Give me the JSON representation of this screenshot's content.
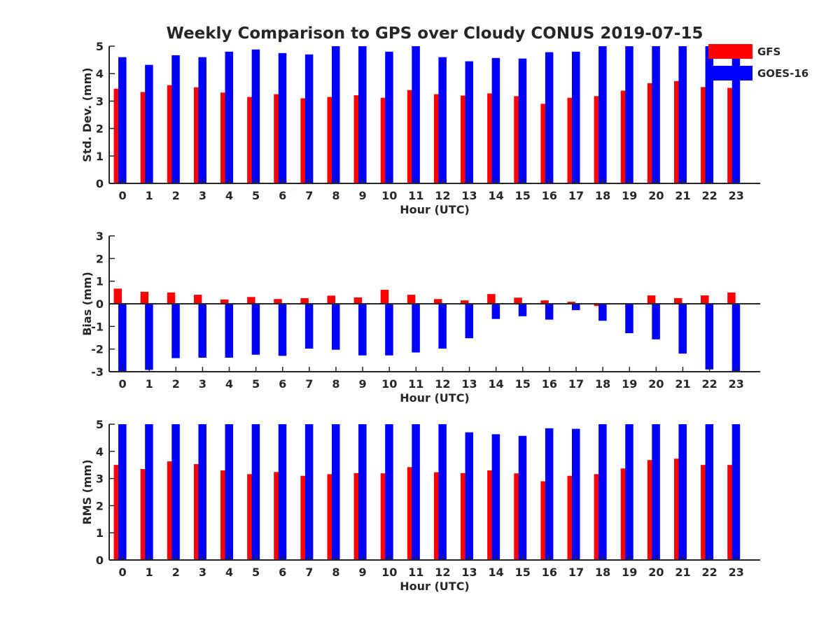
{
  "title": "Weekly Comparison to GPS over Cloudy CONUS 2019-07-15",
  "legend": {
    "placement": "top-right",
    "items": [
      {
        "label": "GFS",
        "color": "#ff0000"
      },
      {
        "label": "GOES-16",
        "color": "#0000ff"
      }
    ]
  },
  "colors": {
    "gfs": "#ff0000",
    "goes": "#0000ff",
    "axis": "#262626"
  },
  "chart_data": [
    {
      "type": "bar",
      "ylabel": "Std. Dev. (mm)",
      "xlabel": "Hour (UTC)",
      "ylim": [
        0,
        5
      ],
      "yticks": [
        0,
        1,
        2,
        3,
        4,
        5
      ],
      "grid": false,
      "categories": [
        "0",
        "1",
        "2",
        "3",
        "4",
        "5",
        "6",
        "7",
        "8",
        "9",
        "10",
        "11",
        "12",
        "13",
        "14",
        "15",
        "16",
        "17",
        "18",
        "19",
        "20",
        "21",
        "22",
        "23"
      ],
      "series": [
        {
          "name": "GFS",
          "values": [
            3.45,
            3.33,
            3.58,
            3.5,
            3.31,
            3.15,
            3.25,
            3.1,
            3.15,
            3.21,
            3.12,
            3.4,
            3.25,
            3.2,
            3.28,
            3.18,
            2.9,
            3.12,
            3.18,
            3.38,
            3.65,
            3.73,
            3.51,
            3.48
          ]
        },
        {
          "name": "GOES-16",
          "values": [
            4.6,
            4.32,
            4.67,
            4.6,
            4.8,
            4.88,
            4.75,
            4.7,
            5.0,
            5.0,
            4.8,
            5.0,
            4.6,
            4.45,
            4.57,
            4.55,
            4.78,
            4.8,
            5.0,
            5.0,
            5.0,
            5.0,
            5.0,
            5.0
          ]
        }
      ]
    },
    {
      "type": "bar",
      "ylabel": "Bias (mm)",
      "xlabel": "Hour (UTC)",
      "ylim": [
        -3,
        3
      ],
      "yticks": [
        -3,
        -2,
        -1,
        0,
        1,
        2,
        3
      ],
      "grid": false,
      "zero_line": true,
      "categories": [
        "0",
        "1",
        "2",
        "3",
        "4",
        "5",
        "6",
        "7",
        "8",
        "9",
        "10",
        "11",
        "12",
        "13",
        "14",
        "15",
        "16",
        "17",
        "18",
        "19",
        "20",
        "21",
        "22",
        "23"
      ],
      "series": [
        {
          "name": "GFS",
          "values": [
            0.67,
            0.53,
            0.5,
            0.4,
            0.19,
            0.3,
            0.21,
            0.25,
            0.36,
            0.28,
            0.62,
            0.4,
            0.21,
            0.15,
            0.43,
            0.27,
            0.15,
            0.09,
            -0.1,
            0.0,
            0.37,
            0.25,
            0.37,
            0.5
          ]
        },
        {
          "name": "GOES-16",
          "values": [
            -3.0,
            -2.92,
            -2.4,
            -2.38,
            -2.38,
            -2.25,
            -2.3,
            -1.98,
            -2.03,
            -2.28,
            -2.28,
            -2.15,
            -1.98,
            -1.52,
            -0.67,
            -0.55,
            -0.7,
            -0.28,
            -0.75,
            -1.3,
            -1.57,
            -2.2,
            -2.9,
            -3.0
          ]
        }
      ]
    },
    {
      "type": "bar",
      "ylabel": "RMS (mm)",
      "xlabel": "Hour (UTC)",
      "ylim": [
        0,
        5
      ],
      "yticks": [
        0,
        1,
        2,
        3,
        4,
        5
      ],
      "grid": false,
      "categories": [
        "0",
        "1",
        "2",
        "3",
        "4",
        "5",
        "6",
        "7",
        "8",
        "9",
        "10",
        "11",
        "12",
        "13",
        "14",
        "15",
        "16",
        "17",
        "18",
        "19",
        "20",
        "21",
        "22",
        "23"
      ],
      "series": [
        {
          "name": "GFS",
          "values": [
            3.5,
            3.35,
            3.63,
            3.53,
            3.3,
            3.16,
            3.24,
            3.1,
            3.16,
            3.2,
            3.19,
            3.42,
            3.23,
            3.2,
            3.3,
            3.19,
            2.9,
            3.1,
            3.16,
            3.37,
            3.68,
            3.73,
            3.5,
            3.5
          ]
        },
        {
          "name": "GOES-16",
          "values": [
            5.0,
            5.0,
            5.0,
            5.0,
            5.0,
            5.0,
            5.0,
            5.0,
            5.0,
            5.0,
            5.0,
            5.0,
            5.0,
            4.7,
            4.63,
            4.57,
            4.85,
            4.83,
            5.0,
            5.0,
            5.0,
            5.0,
            5.0,
            5.0
          ]
        }
      ]
    }
  ]
}
